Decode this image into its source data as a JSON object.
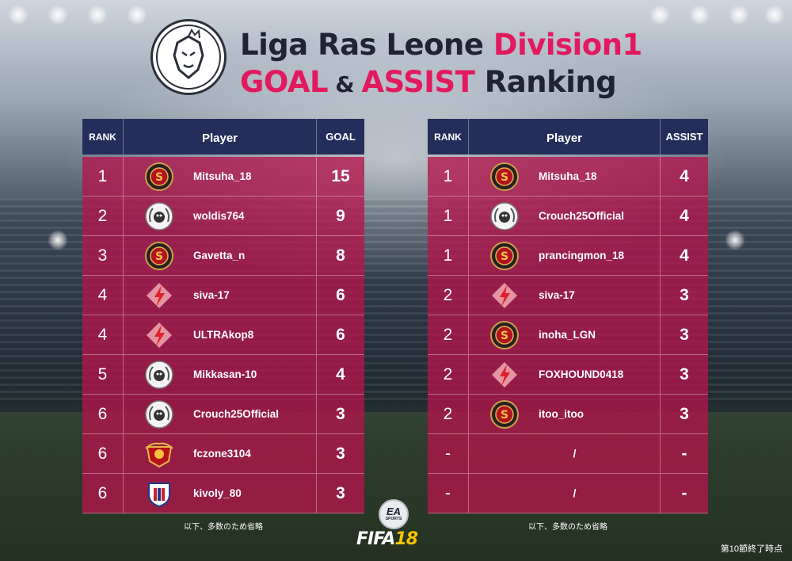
{
  "header": {
    "logo_text": "Liga Ras Leone",
    "title_line1_a": "Liga Ras Leone ",
    "title_line1_b": "Division1",
    "title_line2_a": "GOAL",
    "title_line2_amp": " & ",
    "title_line2_b": "ASSIST",
    "title_line2_c": " Ranking"
  },
  "goal_table": {
    "col_rank": "RANK",
    "col_player": "Player",
    "col_value": "GOAL",
    "rows": [
      {
        "rank": "1",
        "player": "Mitsuha_18",
        "value": "15",
        "badge": "club-crest-s-icon"
      },
      {
        "rank": "2",
        "player": "woldis764",
        "value": "9",
        "badge": "club-crest-wreath-icon"
      },
      {
        "rank": "3",
        "player": "Gavetta_n",
        "value": "8",
        "badge": "club-crest-s-icon"
      },
      {
        "rank": "4",
        "player": "siva-17",
        "value": "6",
        "badge": "club-crest-bolt-icon"
      },
      {
        "rank": "4",
        "player": "ULTRAkop8",
        "value": "6",
        "badge": "club-crest-bolt-icon"
      },
      {
        "rank": "5",
        "player": "Mikkasan-10",
        "value": "4",
        "badge": "club-crest-wreath-icon"
      },
      {
        "rank": "6",
        "player": "Crouch25Official",
        "value": "3",
        "badge": "club-crest-wreath-icon"
      },
      {
        "rank": "6",
        "player": "fczone3104",
        "value": "3",
        "badge": "club-crest-shield-red-icon"
      },
      {
        "rank": "6",
        "player": "kivoly_80",
        "value": "3",
        "badge": "club-crest-shield-blue-icon"
      }
    ],
    "footnote": "以下、多数のため省略"
  },
  "assist_table": {
    "col_rank": "RANK",
    "col_player": "Player",
    "col_value": "ASSIST",
    "rows": [
      {
        "rank": "1",
        "player": "Mitsuha_18",
        "value": "4",
        "badge": "club-crest-s-icon"
      },
      {
        "rank": "1",
        "player": "Crouch25Official",
        "value": "4",
        "badge": "club-crest-wreath-icon"
      },
      {
        "rank": "1",
        "player": "prancingmon_18",
        "value": "4",
        "badge": "club-crest-s-icon"
      },
      {
        "rank": "2",
        "player": "siva-17",
        "value": "3",
        "badge": "club-crest-bolt-icon"
      },
      {
        "rank": "2",
        "player": "inoha_LGN",
        "value": "3",
        "badge": "club-crest-s-icon"
      },
      {
        "rank": "2",
        "player": "FOXHOUND0418",
        "value": "3",
        "badge": "club-crest-bolt-icon"
      },
      {
        "rank": "2",
        "player": "itoo_itoo",
        "value": "3",
        "badge": "club-crest-s-icon"
      },
      {
        "rank": "-",
        "player": "/",
        "value": "-",
        "badge": ""
      },
      {
        "rank": "-",
        "player": "/",
        "value": "-",
        "badge": ""
      }
    ],
    "footnote": "以下、多数のため省略"
  },
  "branding": {
    "ea_text": "EA",
    "ea_sports": "SPORTS",
    "fifa_text": "FIFA",
    "fifa_num": "18"
  },
  "as_of": "第10節終了時点",
  "colors": {
    "header_navy": "#242e5a",
    "row_crimson": "#b4144b",
    "accent_pink": "#e3195f"
  }
}
